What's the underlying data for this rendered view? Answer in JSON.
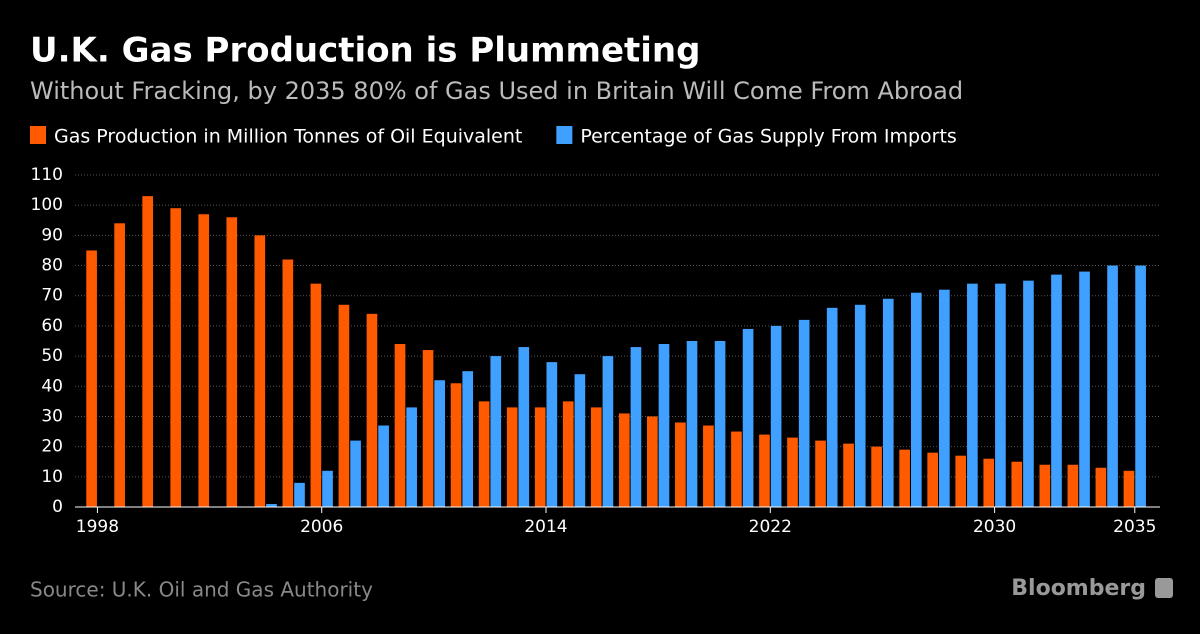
{
  "chart_data": {
    "type": "bar",
    "title": "U.K. Gas Production is Plummeting",
    "subtitle": "Without Fracking, by 2035 80% of Gas Used in Britain Will Come From Abroad",
    "source": "Source: U.K. Oil and Gas Authority",
    "brand": "Bloomberg",
    "x": [
      1998,
      1999,
      2000,
      2001,
      2002,
      2003,
      2004,
      2005,
      2006,
      2007,
      2008,
      2009,
      2010,
      2011,
      2012,
      2013,
      2014,
      2015,
      2016,
      2017,
      2018,
      2019,
      2020,
      2021,
      2022,
      2023,
      2024,
      2025,
      2026,
      2027,
      2028,
      2029,
      2030,
      2031,
      2032,
      2033,
      2034,
      2035
    ],
    "series": [
      {
        "name": "Gas Production in Million Tonnes of Oil Equivalent",
        "color": "#ff5a00",
        "values": [
          85,
          94,
          103,
          99,
          97,
          96,
          90,
          82,
          74,
          67,
          64,
          54,
          52,
          41,
          35,
          33,
          33,
          35,
          33,
          31,
          30,
          28,
          27,
          25,
          24,
          23,
          22,
          21,
          20,
          19,
          18,
          17,
          16,
          15,
          14,
          14,
          13,
          12
        ]
      },
      {
        "name": "Percentage of Gas Supply From Imports",
        "color": "#3fa0ff",
        "values": [
          null,
          null,
          null,
          null,
          null,
          null,
          1,
          8,
          12,
          22,
          27,
          33,
          42,
          45,
          50,
          53,
          48,
          44,
          50,
          53,
          54,
          55,
          55,
          59,
          60,
          62,
          66,
          67,
          69,
          71,
          72,
          74,
          74,
          75,
          77,
          78,
          80,
          80
        ]
      }
    ],
    "xlim": [
      1997.2,
      2035.9
    ],
    "xticks": [
      1998,
      2006,
      2014,
      2022,
      2030,
      2035
    ],
    "ylim": [
      0,
      110
    ],
    "yticks": [
      0,
      10,
      20,
      30,
      40,
      50,
      60,
      70,
      80,
      90,
      100,
      110
    ],
    "grid": true
  }
}
